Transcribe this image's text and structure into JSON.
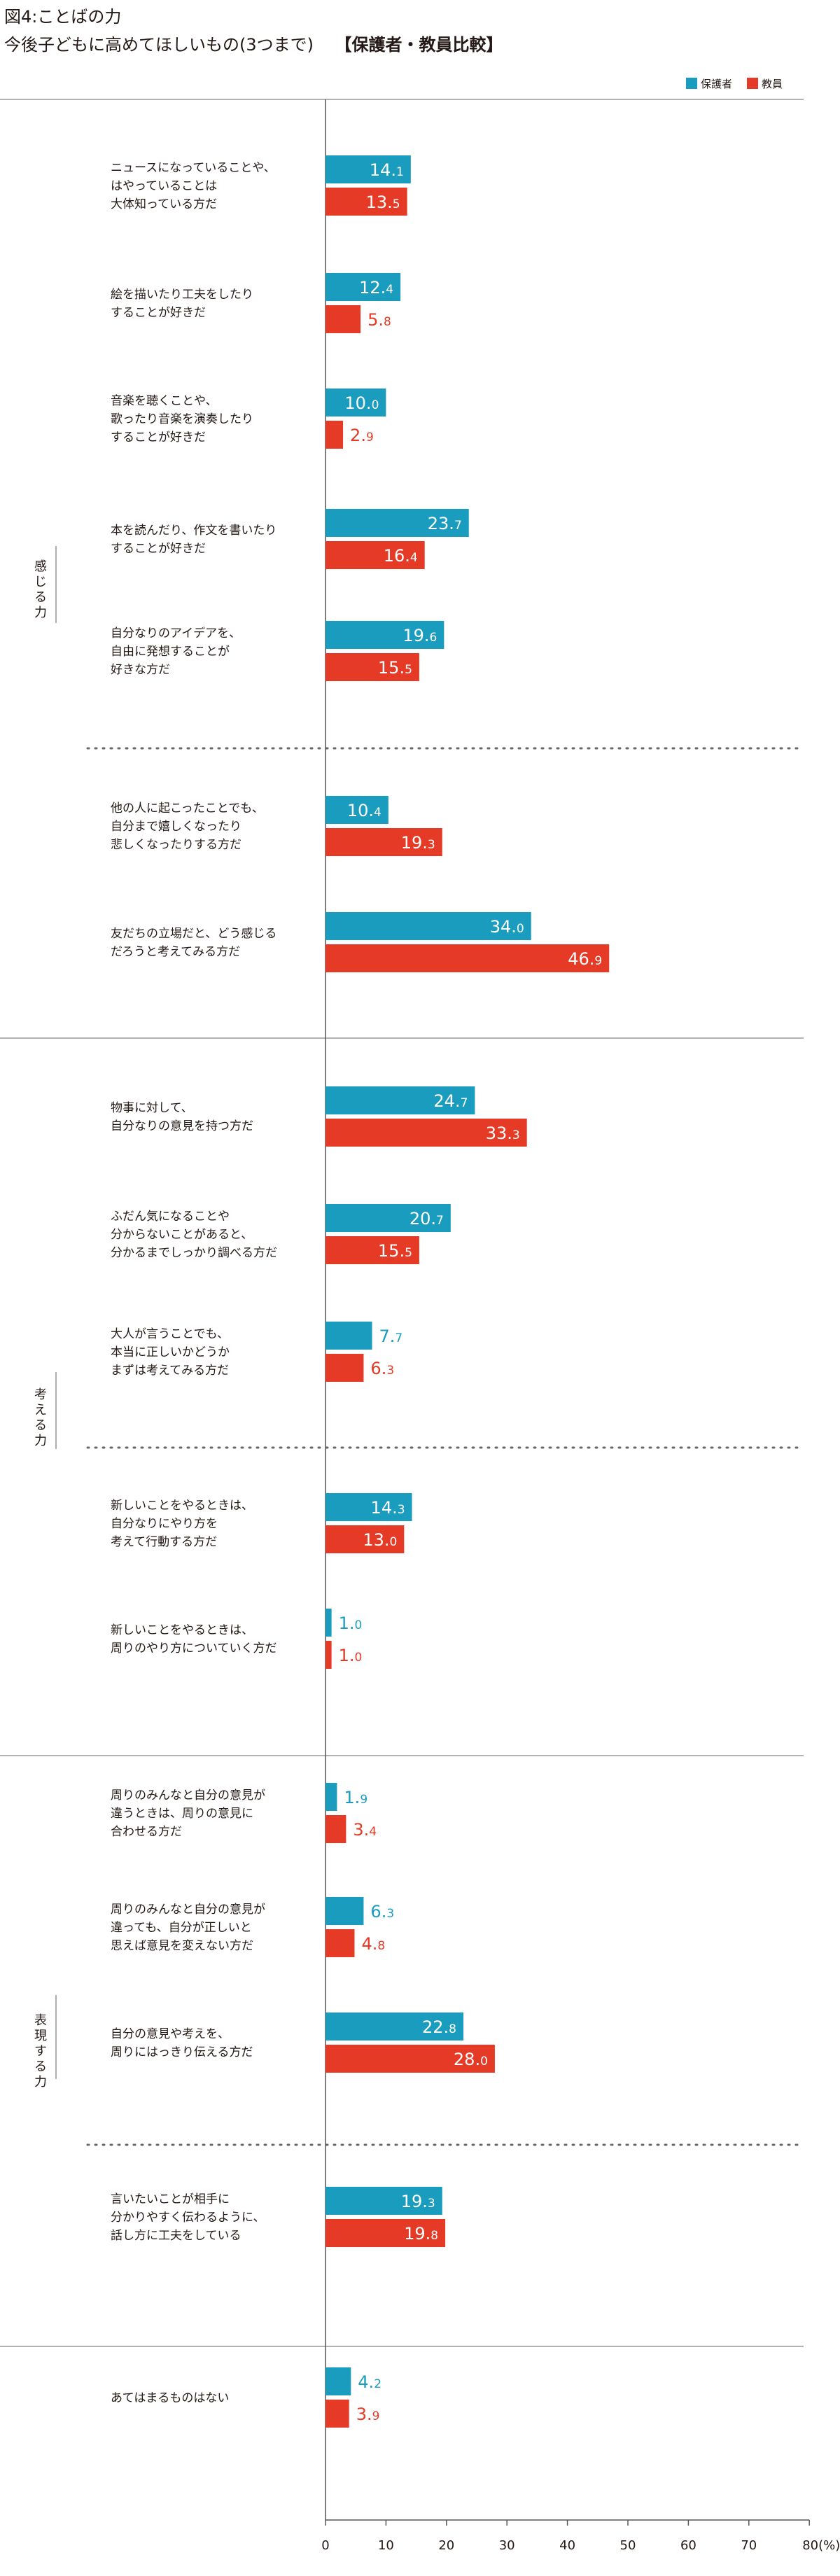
{
  "title": "図4:ことばの力",
  "subtitle": "今後子どもに高めてほしいもの(3つまで)",
  "subtitle_bracket": "【保護者・教員比較】",
  "colors": {
    "parent": "#1a9cbf",
    "teacher": "#e53a26",
    "rule": "#999999",
    "axis": "#555555"
  },
  "chart_data": {
    "type": "bar",
    "orientation": "horizontal",
    "title": "今後子どもに高めてほしいもの(3つまで)",
    "xlim": [
      0,
      80
    ],
    "x_ticks": [
      "0",
      "10",
      "20",
      "30",
      "40",
      "50",
      "60",
      "70",
      "80(%)"
    ],
    "legend": {
      "position": "top-right"
    },
    "series": [
      {
        "name": "保護者",
        "color": "#1a9cbf",
        "values": [
          14.1,
          12.4,
          10.0,
          23.7,
          19.6,
          10.4,
          34.0,
          24.7,
          20.7,
          7.7,
          14.3,
          1.0,
          1.9,
          6.3,
          22.8,
          19.3,
          4.2
        ]
      },
      {
        "name": "教員",
        "color": "#e53a26",
        "values": [
          13.5,
          5.8,
          2.9,
          16.4,
          15.5,
          19.3,
          46.9,
          33.3,
          15.5,
          6.3,
          13.0,
          1.0,
          3.4,
          4.8,
          28.0,
          19.8,
          3.9
        ]
      }
    ],
    "groups": [
      {
        "name": "感じる力",
        "items": [
          0,
          1,
          2,
          3,
          4,
          5,
          6
        ]
      },
      {
        "name": "考える力",
        "items": [
          7,
          8,
          9,
          10,
          11
        ]
      },
      {
        "name": "表現する力",
        "items": [
          12,
          13,
          14,
          15
        ]
      },
      {
        "name": "",
        "items": [
          16
        ]
      }
    ],
    "categories": [
      [
        "ニュースになっていることや、",
        "はやっていることは",
        "大体知っている方だ"
      ],
      [
        "絵を描いたり工夫をしたり",
        "することが好きだ"
      ],
      [
        "音楽を聴くことや、",
        "歌ったり音楽を演奏したり",
        "することが好きだ"
      ],
      [
        "本を読んだり、作文を書いたり",
        "することが好きだ"
      ],
      [
        "自分なりのアイデアを、",
        "自由に発想することが",
        "好きな方だ"
      ],
      [
        "他の人に起こったことでも、",
        "自分まで嬉しくなったり",
        "悲しくなったりする方だ"
      ],
      [
        "友だちの立場だと、どう感じる",
        "だろうと考えてみる方だ"
      ],
      [
        "物事に対して、",
        "自分なりの意見を持つ方だ"
      ],
      [
        "ふだん気になることや",
        "分からないことがあると、",
        "分かるまでしっかり調べる方だ"
      ],
      [
        "大人が言うことでも、",
        "本当に正しいかどうか",
        "まずは考えてみる方だ"
      ],
      [
        "新しいことをやるときは、",
        "自分なりにやり方を",
        "考えて行動する方だ"
      ],
      [
        "新しいことをやるときは、",
        "周りのやり方についていく方だ"
      ],
      [
        "周りのみんなと自分の意見が",
        "違うときは、周りの意見に",
        "合わせる方だ"
      ],
      [
        "周りのみんなと自分の意見が",
        "違っても、自分が正しいと",
        "思えば意見を変えない方だ"
      ],
      [
        "自分の意見や考えを、",
        "周りにはっきり伝える方だ"
      ],
      [
        "言いたいことが相手に",
        "分かりやすく伝わるように、",
        "話し方に工夫をしている"
      ],
      [
        "あてはまるものはない"
      ]
    ]
  }
}
